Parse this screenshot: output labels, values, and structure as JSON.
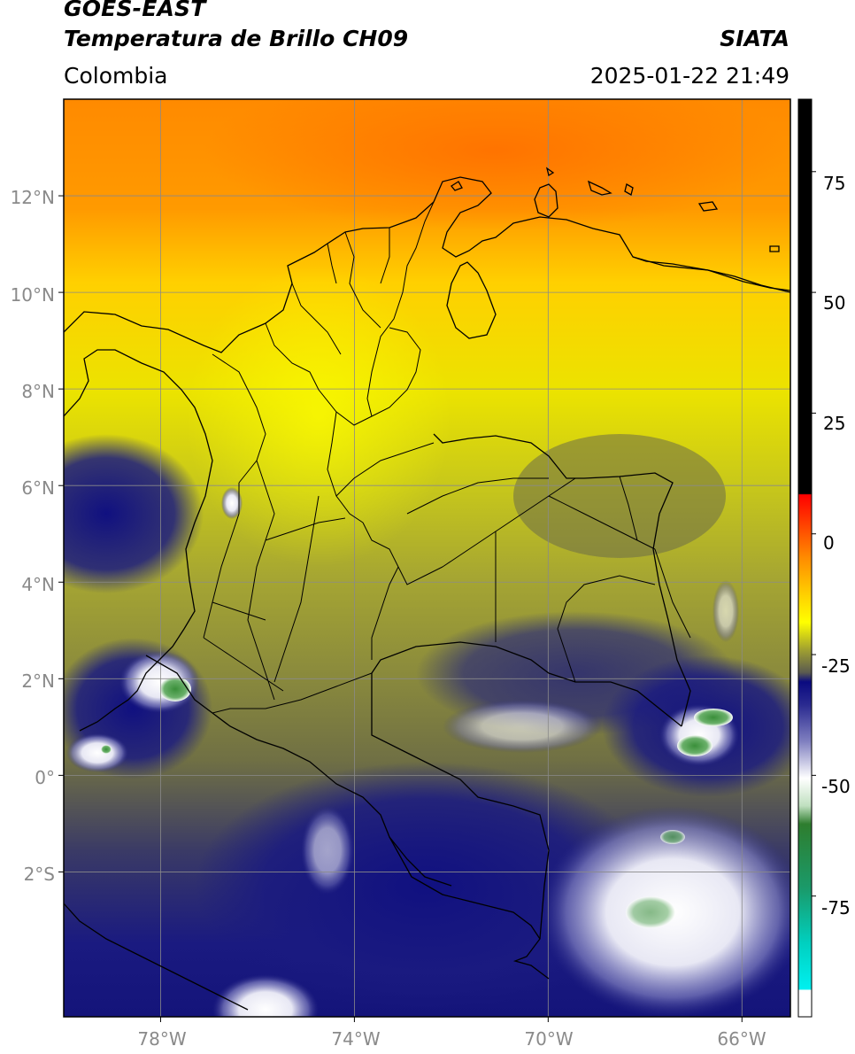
{
  "header": {
    "satellite": "GOES-EAST",
    "product": "Temperatura de Brillo CH09",
    "organization": "SIATA",
    "region": "Colombia",
    "datetime": "2025-01-22 21:49"
  },
  "map": {
    "lat_ticks": [
      {
        "value": 12,
        "label": "12°N"
      },
      {
        "value": 10,
        "label": "10°N"
      },
      {
        "value": 8,
        "label": "8°N"
      },
      {
        "value": 6,
        "label": "6°N"
      },
      {
        "value": 4,
        "label": "4°N"
      },
      {
        "value": 2,
        "label": "2°N"
      },
      {
        "value": 0,
        "label": "0°"
      },
      {
        "value": -2,
        "label": "2°S"
      }
    ],
    "lon_ticks": [
      {
        "value": -78,
        "label": "78°W"
      },
      {
        "value": -74,
        "label": "74°W"
      },
      {
        "value": -70,
        "label": "70°W"
      },
      {
        "value": -66,
        "label": "66°W"
      }
    ],
    "lon_range": [
      -80,
      -65
    ],
    "lat_range": [
      -5,
      14
    ],
    "grid": true
  },
  "colorbar": {
    "ticks": [
      {
        "value": 75,
        "label": "75"
      },
      {
        "value": 50,
        "label": "50"
      },
      {
        "value": 25,
        "label": "25"
      },
      {
        "value": 0,
        "label": "0"
      },
      {
        "value": -25,
        "label": "-25"
      },
      {
        "value": -50,
        "label": "-50"
      },
      {
        "value": -75,
        "label": "-75"
      }
    ],
    "range": [
      -100,
      90
    ],
    "colors": {
      "warmest": "#000000",
      "hot": "#ff0000",
      "warm": "#ff8c00",
      "mild": "#ffff00",
      "neutral": "#6b6b3a",
      "cold": "#0a0a80",
      "very_cold": "#ffffff",
      "coldest_green": "#2e8b2e",
      "coldest_cyan": "#00e0e0"
    }
  }
}
